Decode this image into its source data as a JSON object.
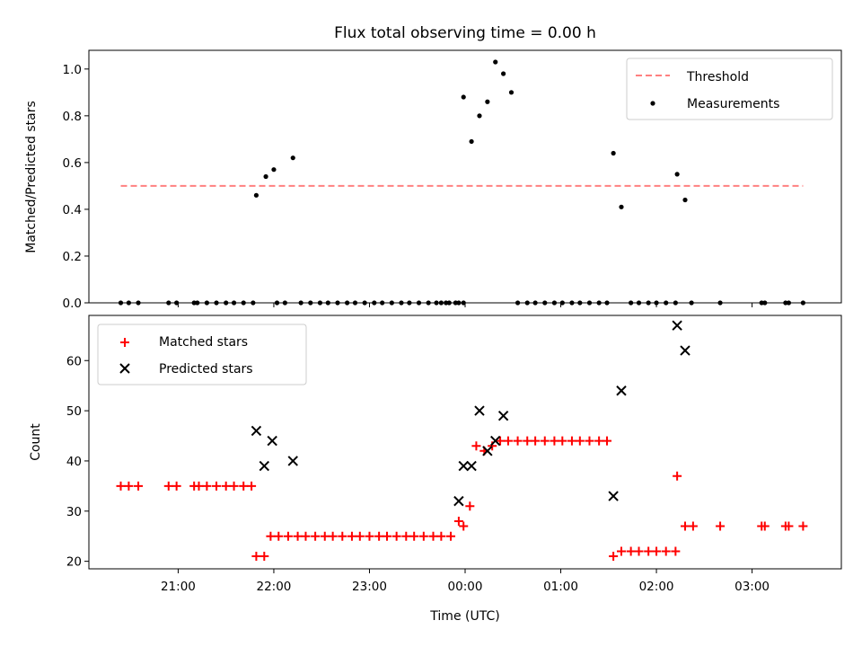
{
  "chart_data": [
    {
      "type": "scatter",
      "title": "Flux total observing time = 0.00 h",
      "ylabel": "Matched/Predicted stars",
      "ylim": [
        0,
        1.08
      ],
      "yticks": [
        "0.0",
        "0.2",
        "0.4",
        "0.6",
        "0.8",
        "1.0"
      ],
      "x_range": [
        "20:04",
        "03:56"
      ],
      "grid": false,
      "legend_position": "top-right",
      "threshold": {
        "name": "Threshold",
        "value": 0.5,
        "x_start": "20:24",
        "x_end": "03:32",
        "color": "#ff8080"
      },
      "series": [
        {
          "name": "Measurements",
          "color": "#000000",
          "points": [
            [
              "20:24",
              0
            ],
            [
              "20:29",
              0
            ],
            [
              "20:35",
              0
            ],
            [
              "20:54",
              0
            ],
            [
              "20:59",
              0
            ],
            [
              "21:10",
              0
            ],
            [
              "21:12",
              0
            ],
            [
              "21:18",
              0
            ],
            [
              "21:24",
              0
            ],
            [
              "21:30",
              0
            ],
            [
              "21:35",
              0
            ],
            [
              "21:41",
              0
            ],
            [
              "21:47",
              0
            ],
            [
              "21:49",
              0.46
            ],
            [
              "21:55",
              0.54
            ],
            [
              "22:00",
              0.57
            ],
            [
              "22:02",
              0
            ],
            [
              "22:07",
              0
            ],
            [
              "22:12",
              0.62
            ],
            [
              "22:17",
              0
            ],
            [
              "22:23",
              0
            ],
            [
              "22:29",
              0
            ],
            [
              "22:34",
              0
            ],
            [
              "22:40",
              0
            ],
            [
              "22:46",
              0
            ],
            [
              "22:51",
              0
            ],
            [
              "22:57",
              0
            ],
            [
              "23:03",
              0
            ],
            [
              "23:08",
              0
            ],
            [
              "23:14",
              0
            ],
            [
              "23:20",
              0
            ],
            [
              "23:25",
              0
            ],
            [
              "23:31",
              0
            ],
            [
              "23:37",
              0
            ],
            [
              "23:42",
              0
            ],
            [
              "23:48",
              0
            ],
            [
              "23:54",
              0
            ],
            [
              "23:59",
              0
            ],
            [
              "23:45",
              0
            ],
            [
              "23:50",
              0
            ],
            [
              "23:56",
              0
            ],
            [
              "23:59",
              0.88
            ],
            [
              "00:04",
              0.69
            ],
            [
              "00:09",
              0.8
            ],
            [
              "00:14",
              0.86
            ],
            [
              "00:19",
              1.03
            ],
            [
              "00:24",
              0.98
            ],
            [
              "00:29",
              0.9
            ],
            [
              "00:33",
              0
            ],
            [
              "00:39",
              0
            ],
            [
              "00:44",
              0
            ],
            [
              "00:50",
              0
            ],
            [
              "00:56",
              0
            ],
            [
              "01:01",
              0
            ],
            [
              "01:07",
              0
            ],
            [
              "01:12",
              0
            ],
            [
              "01:18",
              0
            ],
            [
              "01:24",
              0
            ],
            [
              "01:29",
              0
            ],
            [
              "01:33",
              0.64
            ],
            [
              "01:38",
              0.41
            ],
            [
              "01:44",
              0
            ],
            [
              "01:49",
              0
            ],
            [
              "01:55",
              0
            ],
            [
              "02:00",
              0
            ],
            [
              "02:06",
              0
            ],
            [
              "02:12",
              0
            ],
            [
              "02:13",
              0.55
            ],
            [
              "02:18",
              0.44
            ],
            [
              "02:22",
              0
            ],
            [
              "02:40",
              0
            ],
            [
              "03:06",
              0
            ],
            [
              "03:08",
              0
            ],
            [
              "03:21",
              0
            ],
            [
              "03:23",
              0
            ],
            [
              "03:32",
              0
            ]
          ]
        }
      ]
    },
    {
      "type": "scatter",
      "xlabel": "Time (UTC)",
      "ylabel": "Count",
      "ylim": [
        18.5,
        69
      ],
      "yticks": [
        "20",
        "30",
        "40",
        "50",
        "60"
      ],
      "xticks": [
        "21:00",
        "22:00",
        "23:00",
        "00:00",
        "01:00",
        "02:00",
        "03:00"
      ],
      "x_range": [
        "20:04",
        "03:56"
      ],
      "grid": false,
      "legend_position": "top-left",
      "series": [
        {
          "name": "Matched stars",
          "marker": "plus",
          "color": "#ff0000",
          "points": [
            [
              "20:24",
              35
            ],
            [
              "20:29",
              35
            ],
            [
              "20:35",
              35
            ],
            [
              "20:54",
              35
            ],
            [
              "20:59",
              35
            ],
            [
              "21:10",
              35
            ],
            [
              "21:13",
              35
            ],
            [
              "21:18",
              35
            ],
            [
              "21:24",
              35
            ],
            [
              "21:30",
              35
            ],
            [
              "21:35",
              35
            ],
            [
              "21:41",
              35
            ],
            [
              "21:46",
              35
            ],
            [
              "21:49",
              21
            ],
            [
              "21:54",
              21
            ],
            [
              "21:58",
              25
            ],
            [
              "22:03",
              25
            ],
            [
              "22:09",
              25
            ],
            [
              "22:15",
              25
            ],
            [
              "22:20",
              25
            ],
            [
              "22:26",
              25
            ],
            [
              "22:32",
              25
            ],
            [
              "22:37",
              25
            ],
            [
              "22:43",
              25
            ],
            [
              "22:49",
              25
            ],
            [
              "22:54",
              25
            ],
            [
              "23:00",
              25
            ],
            [
              "23:06",
              25
            ],
            [
              "23:11",
              25
            ],
            [
              "23:17",
              25
            ],
            [
              "23:23",
              25
            ],
            [
              "23:28",
              25
            ],
            [
              "23:34",
              25
            ],
            [
              "23:40",
              25
            ],
            [
              "23:45",
              25
            ],
            [
              "23:51",
              25
            ],
            [
              "23:56",
              28
            ],
            [
              "23:59",
              27
            ],
            [
              "00:03",
              31
            ],
            [
              "00:07",
              43
            ],
            [
              "00:12",
              42
            ],
            [
              "00:17",
              43
            ],
            [
              "00:22",
              44
            ],
            [
              "00:27",
              44
            ],
            [
              "00:33",
              44
            ],
            [
              "00:39",
              44
            ],
            [
              "00:44",
              44
            ],
            [
              "00:50",
              44
            ],
            [
              "00:56",
              44
            ],
            [
              "01:01",
              44
            ],
            [
              "01:07",
              44
            ],
            [
              "01:12",
              44
            ],
            [
              "01:18",
              44
            ],
            [
              "01:24",
              44
            ],
            [
              "01:29",
              44
            ],
            [
              "01:33",
              21
            ],
            [
              "01:38",
              22
            ],
            [
              "01:44",
              22
            ],
            [
              "01:49",
              22
            ],
            [
              "01:55",
              22
            ],
            [
              "02:00",
              22
            ],
            [
              "02:06",
              22
            ],
            [
              "02:12",
              22
            ],
            [
              "02:13",
              37
            ],
            [
              "02:18",
              27
            ],
            [
              "02:23",
              27
            ],
            [
              "02:40",
              27
            ],
            [
              "03:06",
              27
            ],
            [
              "03:08",
              27
            ],
            [
              "03:21",
              27
            ],
            [
              "03:23",
              27
            ],
            [
              "03:32",
              27
            ]
          ]
        },
        {
          "name": "Predicted stars",
          "marker": "x",
          "color": "#000000",
          "points": [
            [
              "21:49",
              46
            ],
            [
              "21:54",
              39
            ],
            [
              "21:59",
              44
            ],
            [
              "22:12",
              40
            ],
            [
              "23:56",
              32
            ],
            [
              "23:59",
              39
            ],
            [
              "00:04",
              39
            ],
            [
              "00:09",
              50
            ],
            [
              "00:14",
              42
            ],
            [
              "00:19",
              44
            ],
            [
              "00:24",
              49
            ],
            [
              "01:33",
              33
            ],
            [
              "01:38",
              54
            ],
            [
              "02:13",
              67
            ],
            [
              "02:18",
              62
            ]
          ]
        }
      ]
    }
  ]
}
